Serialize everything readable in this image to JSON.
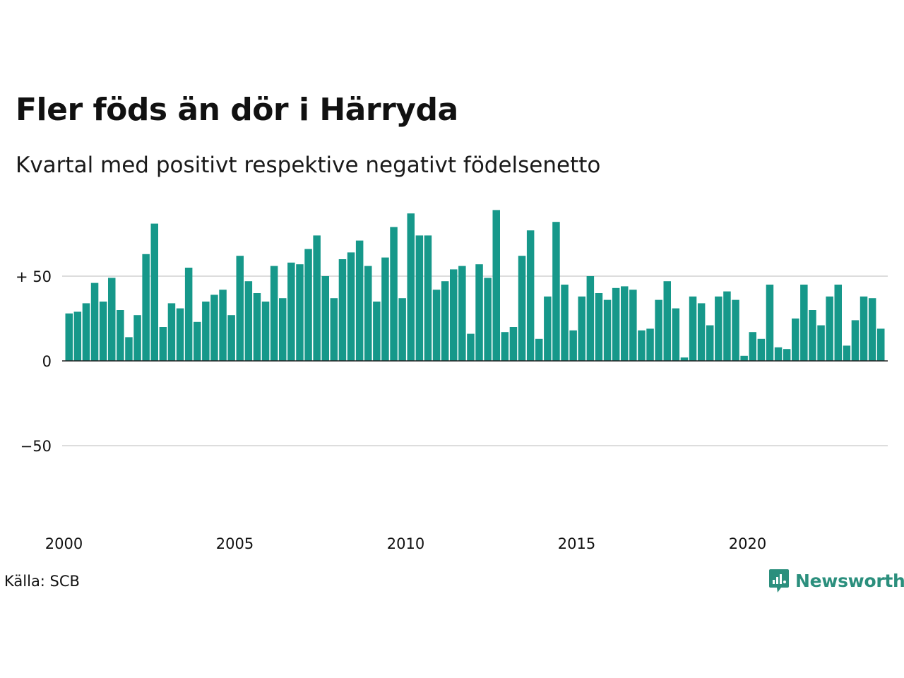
{
  "chart_data": {
    "type": "bar",
    "title": "Fler föds än dör i Härryda",
    "subtitle": "Kvartal med positivt respektive negativt födelsenetto",
    "source": "Källa: SCB",
    "brand": "Newsworthy",
    "bar_color": "#16988a",
    "brand_color": "#2b8f7d",
    "grid": true,
    "ylim": [
      -100,
      100
    ],
    "y_ticks": [
      {
        "value": 50,
        "label": "+ 50"
      },
      {
        "value": 0,
        "label": "0"
      },
      {
        "value": -50,
        "label": "−50"
      }
    ],
    "x_ticks": [
      {
        "year": 2000,
        "label": "2000"
      },
      {
        "year": 2005,
        "label": "2005"
      },
      {
        "year": 2010,
        "label": "2010"
      },
      {
        "year": 2015,
        "label": "2015"
      },
      {
        "year": 2020,
        "label": "2020"
      }
    ],
    "x_start": "2000 Q1",
    "values": [
      28,
      29,
      34,
      46,
      35,
      49,
      30,
      14,
      27,
      63,
      81,
      20,
      34,
      31,
      55,
      23,
      35,
      39,
      42,
      27,
      62,
      47,
      40,
      35,
      56,
      37,
      58,
      57,
      66,
      74,
      50,
      37,
      60,
      64,
      71,
      56,
      35,
      61,
      79,
      37,
      87,
      74,
      74,
      42,
      47,
      54,
      56,
      16,
      57,
      49,
      89,
      17,
      20,
      62,
      77,
      13,
      38,
      82,
      45,
      18,
      38,
      50,
      40,
      36,
      43,
      44,
      42,
      18,
      19,
      36,
      47,
      31,
      2,
      38,
      34,
      21,
      38,
      41,
      36,
      3,
      17,
      13,
      45,
      8,
      7,
      25,
      45,
      30,
      21,
      38,
      45,
      9,
      24,
      38,
      37,
      19
    ]
  }
}
